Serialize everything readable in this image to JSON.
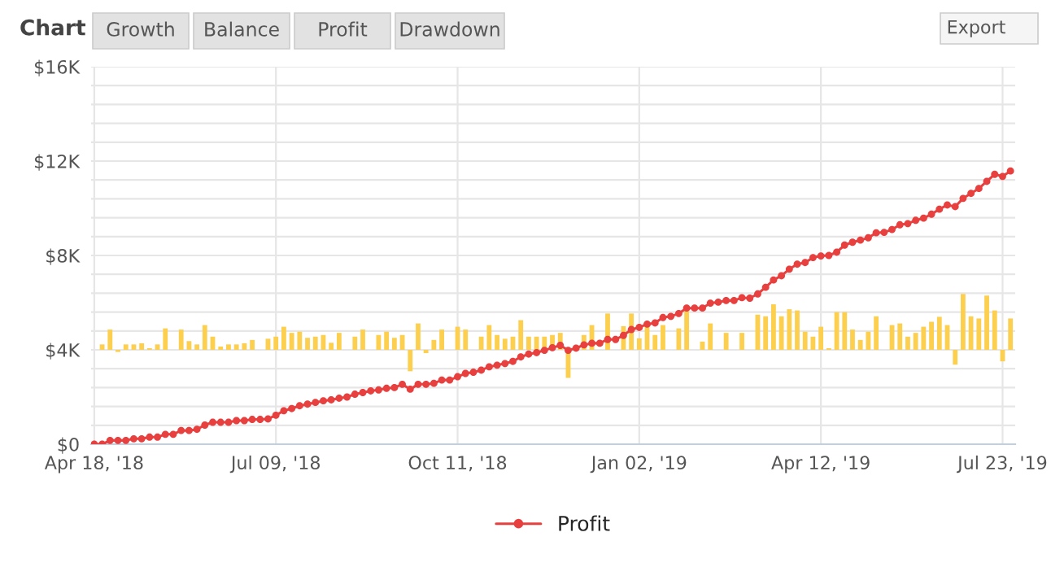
{
  "chart_data": {
    "type": "line",
    "title": "Chart",
    "annotations": [
      "Growth",
      "Balance",
      "Profit",
      "Drawdown",
      "Export"
    ],
    "categories": [
      "Apr 18, '18",
      null,
      null,
      null,
      null,
      null,
      null,
      null,
      null,
      null,
      null,
      null,
      null,
      null,
      null,
      null,
      null,
      null,
      null,
      null,
      null,
      null,
      null,
      "Jul 09, '18",
      null,
      null,
      null,
      null,
      null,
      null,
      null,
      null,
      null,
      null,
      null,
      null,
      null,
      null,
      null,
      null,
      null,
      null,
      null,
      null,
      null,
      null,
      "Oct 11, '18",
      null,
      null,
      null,
      null,
      null,
      null,
      null,
      null,
      null,
      null,
      null,
      null,
      null,
      null,
      null,
      null,
      null,
      null,
      null,
      null,
      null,
      null,
      "Jan 02, '19",
      null,
      null,
      null,
      null,
      null,
      null,
      null,
      null,
      null,
      null,
      null,
      null,
      null,
      null,
      null,
      null,
      null,
      null,
      null,
      null,
      null,
      null,
      "Apr 12, '19",
      null,
      null,
      null,
      null,
      null,
      null,
      null,
      null,
      null,
      null,
      null,
      null,
      null,
      null,
      null,
      null,
      null,
      null,
      null,
      null,
      null,
      null,
      "Jul 23, '19",
      null
    ],
    "series": [
      {
        "type": "bar",
        "color": "#fcd04e",
        "base": [
          null,
          4000,
          4000,
          4000,
          4000,
          4000,
          4000,
          4000,
          4000,
          4000,
          null,
          4000,
          4000,
          4000,
          4000,
          4000,
          4000,
          4000,
          4000,
          4000,
          4000,
          null,
          4000,
          4000,
          4000,
          4000,
          4000,
          4000,
          4000,
          4000,
          4000,
          4000,
          null,
          4000,
          4000,
          null,
          4000,
          4000,
          4000,
          4000,
          4000,
          4000,
          4000,
          4000,
          4000,
          null,
          4000,
          4000,
          null,
          4000,
          4000,
          4000,
          4000,
          4000,
          4000,
          4000,
          4000,
          4000,
          4000,
          4000,
          4000,
          null,
          4000,
          4000,
          null,
          4000,
          null,
          4000,
          4000,
          4000,
          4000,
          4000,
          4000,
          null,
          4000,
          4000,
          null,
          4000,
          4000,
          null,
          4000,
          null,
          4000,
          null,
          4000,
          4000,
          4000,
          4000,
          4000,
          4000,
          4000,
          4000,
          4000,
          4000,
          4000,
          4000,
          4000,
          4000,
          4000,
          4000,
          null,
          4000,
          4000,
          4000,
          4000,
          4000,
          4000,
          4000,
          4000,
          4000,
          4000,
          4000,
          4000,
          4000,
          4000,
          4000,
          4000
        ],
        "values": [
          null,
          230,
          860,
          -90,
          230,
          230,
          280,
          70,
          230,
          910,
          null,
          860,
          370,
          230,
          1050,
          560,
          140,
          230,
          230,
          280,
          420,
          null,
          470,
          560,
          980,
          720,
          770,
          510,
          560,
          630,
          300,
          720,
          null,
          560,
          860,
          null,
          630,
          770,
          510,
          630,
          -910,
          1120,
          -140,
          420,
          860,
          null,
          980,
          860,
          null,
          560,
          1050,
          630,
          470,
          560,
          1260,
          560,
          560,
          560,
          630,
          720,
          -1190,
          null,
          630,
          1050,
          null,
          1540,
          null,
          1000,
          1540,
          490,
          1090,
          630,
          1050,
          null,
          910,
          1650,
          null,
          350,
          1120,
          null,
          720,
          null,
          720,
          null,
          1490,
          1420,
          1930,
          1420,
          1720,
          1670,
          770,
          560,
          980,
          70,
          1600,
          1600,
          860,
          420,
          770,
          1420,
          null,
          1050,
          1120,
          560,
          720,
          980,
          1190,
          1400,
          1050,
          -630,
          2370,
          1420,
          1330,
          2300,
          1670,
          -490,
          1330
        ]
      },
      {
        "name": "Profit",
        "color": "#e8403f",
        "marker": "circle",
        "values": [
          0,
          0,
          160,
          160,
          160,
          230,
          230,
          300,
          300,
          420,
          420,
          580,
          580,
          630,
          810,
          930,
          930,
          930,
          1000,
          1000,
          1050,
          1050,
          1070,
          1230,
          1420,
          1510,
          1630,
          1700,
          1770,
          1840,
          1880,
          1950,
          2000,
          2120,
          2190,
          2260,
          2300,
          2370,
          2400,
          2540,
          2330,
          2540,
          2540,
          2580,
          2720,
          2720,
          2860,
          3000,
          3050,
          3140,
          3280,
          3350,
          3420,
          3510,
          3700,
          3820,
          3880,
          3980,
          4090,
          4190,
          3980,
          4070,
          4210,
          4280,
          4280,
          4440,
          4440,
          4610,
          4860,
          4950,
          5090,
          5140,
          5370,
          5420,
          5540,
          5770,
          5770,
          5770,
          5980,
          6020,
          6090,
          6090,
          6210,
          6190,
          6370,
          6650,
          6960,
          7140,
          7420,
          7630,
          7700,
          7910,
          7980,
          8000,
          8140,
          8440,
          8560,
          8650,
          8750,
          8960,
          8980,
          9100,
          9300,
          9350,
          9490,
          9580,
          9750,
          9960,
          10140,
          10070,
          10420,
          10630,
          10840,
          11140,
          11440,
          11350,
          11580
        ]
      }
    ],
    "ylim": [
      0,
      16000
    ],
    "yticks": [
      {
        "value": 0,
        "label": "$0"
      },
      {
        "value": 800,
        "label": null
      },
      {
        "value": 1600,
        "label": null
      },
      {
        "value": 2400,
        "label": null
      },
      {
        "value": 3200,
        "label": null
      },
      {
        "value": 4000,
        "label": "$4K"
      },
      {
        "value": 4800,
        "label": null
      },
      {
        "value": 5600,
        "label": null
      },
      {
        "value": 6400,
        "label": null
      },
      {
        "value": 7200,
        "label": null
      },
      {
        "value": 8000,
        "label": "$8K"
      },
      {
        "value": 8800,
        "label": null
      },
      {
        "value": 9600,
        "label": null
      },
      {
        "value": 10400,
        "label": null
      },
      {
        "value": 11200,
        "label": null
      },
      {
        "value": 12000,
        "label": "$12K"
      },
      {
        "value": 12800,
        "label": null
      },
      {
        "value": 13600,
        "label": null
      },
      {
        "value": 14400,
        "label": null
      },
      {
        "value": 15200,
        "label": null
      },
      {
        "value": 16000,
        "label": "$16K"
      }
    ],
    "grid": true,
    "legend": "bottom"
  }
}
